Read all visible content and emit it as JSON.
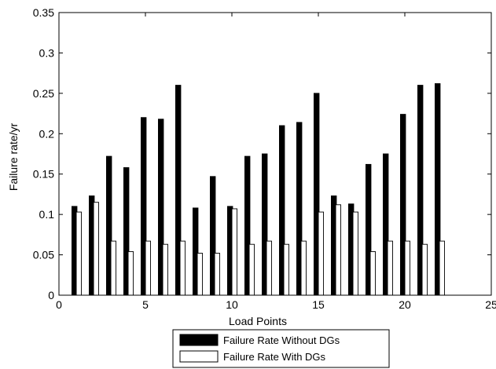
{
  "chart_data": {
    "type": "bar",
    "xlabel": "Load Points",
    "ylabel": "Failure rate/yr",
    "xlim": [
      0,
      25
    ],
    "ylim": [
      0,
      0.35
    ],
    "x_ticks": [
      0,
      5,
      10,
      15,
      20,
      25
    ],
    "y_ticks": [
      0,
      0.05,
      0.1,
      0.15,
      0.2,
      0.25,
      0.3,
      0.35
    ],
    "grid": false,
    "legend_position": "bottom-center, below axes",
    "categories": [
      1,
      2,
      3,
      4,
      5,
      6,
      7,
      8,
      9,
      10,
      11,
      12,
      13,
      14,
      15,
      16,
      17,
      18,
      19,
      20,
      21,
      22
    ],
    "series": [
      {
        "name": "Failure Rate Without DGs",
        "color": "#000000",
        "values": [
          0.11,
          0.123,
          0.172,
          0.158,
          0.22,
          0.218,
          0.26,
          0.108,
          0.147,
          0.11,
          0.172,
          0.175,
          0.21,
          0.214,
          0.25,
          0.123,
          0.113,
          0.162,
          0.175,
          0.224,
          0.26,
          0.262
        ]
      },
      {
        "name": "Failure Rate With DGs",
        "color": "#ffffff",
        "values": [
          0.103,
          0.115,
          0.067,
          0.054,
          0.067,
          0.063,
          0.067,
          0.052,
          0.052,
          0.107,
          0.063,
          0.067,
          0.063,
          0.067,
          0.103,
          0.112,
          0.103,
          0.054,
          0.067,
          0.067,
          0.063,
          0.067
        ]
      }
    ]
  }
}
